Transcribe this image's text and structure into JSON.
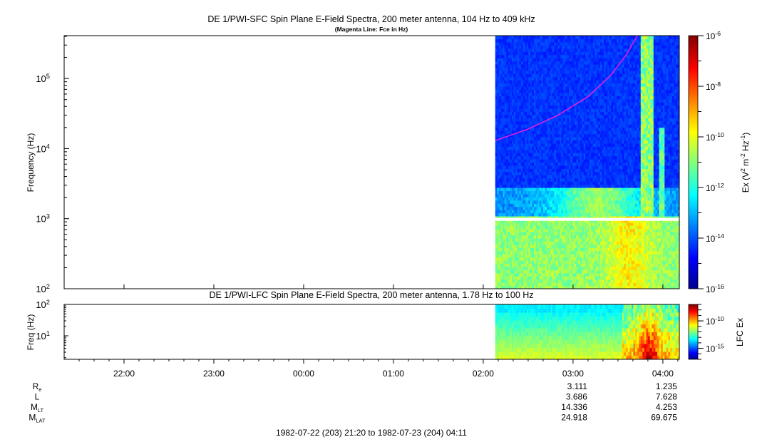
{
  "chart_data": [
    {
      "type": "heatmap",
      "title": "DE 1/PWI-SFC  Spin Plane E-Field Spectra, 200 meter antenna, 104 Hz to 409 kHz",
      "subtitle": "(Magenta Line: Fce in Hz)",
      "ylabel": "Frequency (Hz)",
      "y_scale": "log",
      "ylim": [
        100,
        409000
      ],
      "y_ticks": [
        {
          "value": 100,
          "label": "10",
          "exp": "2"
        },
        {
          "value": 1000,
          "label": "10",
          "exp": "3"
        },
        {
          "value": 10000,
          "label": "10",
          "exp": "4"
        },
        {
          "value": 100000,
          "label": "10",
          "exp": "5"
        }
      ],
      "colorbar": {
        "label_parts": [
          "Ex (V",
          "2",
          " m",
          "-2",
          " Hz",
          "-1",
          ")"
        ],
        "scale": "log",
        "range": [
          1e-16,
          1e-06
        ],
        "ticks": [
          {
            "value": 1e-06,
            "label": "10",
            "exp": "-6"
          },
          {
            "value": 1e-08,
            "label": "10",
            "exp": "-8"
          },
          {
            "value": 1e-10,
            "label": "10",
            "exp": "-10"
          },
          {
            "value": 1e-12,
            "label": "10",
            "exp": "-12"
          },
          {
            "value": 1e-14,
            "label": "10",
            "exp": "-14"
          },
          {
            "value": 1e-16,
            "label": "10",
            "exp": "-16"
          }
        ]
      },
      "data_start_time": "02:08",
      "fce_line": {
        "name": "Fce",
        "color": "#e020e0",
        "points": [
          {
            "t": "02:08",
            "f": 13000
          },
          {
            "t": "02:30",
            "f": 19000
          },
          {
            "t": "02:50",
            "f": 30000
          },
          {
            "t": "03:10",
            "f": 55000
          },
          {
            "t": "03:25",
            "f": 110000
          },
          {
            "t": "03:35",
            "f": 210000
          },
          {
            "t": "03:43",
            "f": 409000
          }
        ]
      }
    },
    {
      "type": "heatmap",
      "title": "DE 1/PWI-LFC  Spin Plane E-Field Spectra, 200 meter antenna, 1.78 Hz to 100 Hz",
      "ylabel": "Freq (Hz)",
      "y_scale": "log",
      "ylim": [
        1.78,
        100
      ],
      "y_ticks": [
        {
          "value": 10,
          "label": "10",
          "exp": "1"
        },
        {
          "value": 100,
          "label": "10",
          "exp": "2"
        }
      ],
      "colorbar": {
        "label": "LFC Ex",
        "scale": "log",
        "range": [
          1e-17,
          1e-07
        ],
        "ticks": [
          {
            "value": 1e-10,
            "label": "10",
            "exp": "-10"
          },
          {
            "value": 1e-15,
            "label": "10",
            "exp": "-15"
          }
        ]
      },
      "data_start_time": "02:08"
    }
  ],
  "time_axis": {
    "range": [
      "21:20",
      "04:11"
    ],
    "ticks": [
      "22:00",
      "23:00",
      "00:00",
      "01:00",
      "02:00",
      "03:00",
      "04:00"
    ]
  },
  "ephemeris": {
    "rows": [
      {
        "label": "R",
        "sub": "e",
        "values": [
          "3.111",
          "1.235"
        ]
      },
      {
        "label": "L",
        "sub": "",
        "values": [
          "3.686",
          "7.628"
        ]
      },
      {
        "label": "M",
        "sub": "LT",
        "values": [
          "14.336",
          "4.253"
        ]
      },
      {
        "label": "M",
        "sub": "LAT",
        "values": [
          "24.918",
          "69.675"
        ]
      }
    ],
    "value_times": [
      "03:00",
      "04:00"
    ]
  },
  "footer": "1982-07-22 (203) 21:20 to 1982-07-23 (204) 04:11",
  "colors": {
    "jet": [
      "#00008f",
      "#0000ff",
      "#00ffff",
      "#ffff00",
      "#ff0000",
      "#800000"
    ],
    "data_gap": "#ffffff"
  }
}
